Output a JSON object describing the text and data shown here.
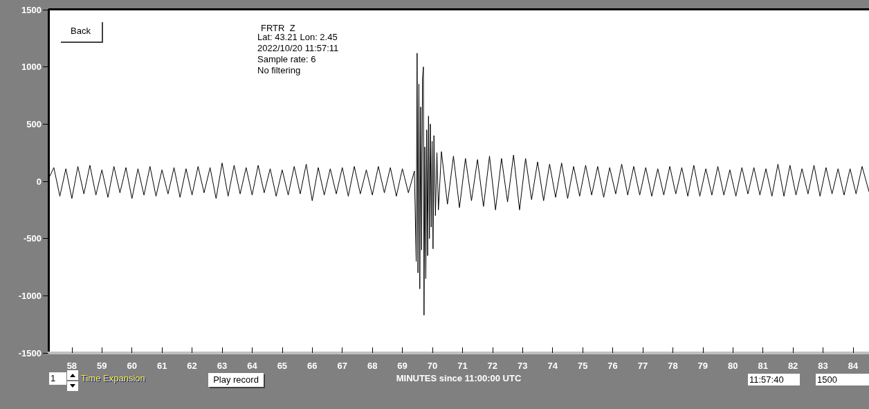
{
  "chart_data": {
    "type": "line",
    "title": "FRTR  Z",
    "xlabel": "MINUTES since 11:00:00 UTC",
    "annotations": [
      "Lat: 43.21 Lon: 2.45",
      "2022/10/20 11:57:11",
      "Sample rate: 6",
      "No filtering",
      "Back",
      "1",
      "Time Expansion",
      "Play record",
      "11:57:40",
      "1500"
    ],
    "x": [
      57.22,
      57.4,
      57.6,
      57.8,
      58.0,
      58.2,
      58.4,
      58.6,
      58.8,
      59.0,
      59.2,
      59.4,
      59.6,
      59.8,
      60.0,
      60.2,
      60.4,
      60.6,
      60.8,
      61.0,
      61.2,
      61.4,
      61.6,
      61.8,
      62.0,
      62.2,
      62.4,
      62.6,
      62.8,
      63.0,
      63.2,
      63.4,
      63.6,
      63.8,
      64.0,
      64.2,
      64.4,
      64.6,
      64.8,
      65.0,
      65.2,
      65.4,
      65.6,
      65.8,
      66.0,
      66.2,
      66.4,
      66.6,
      66.8,
      67.0,
      67.2,
      67.4,
      67.6,
      67.8,
      68.0,
      68.2,
      68.4,
      68.6,
      68.8,
      69.0,
      69.2,
      69.4,
      69.46,
      69.49,
      69.52,
      69.55,
      69.58,
      69.61,
      69.64,
      69.67,
      69.7,
      69.72,
      69.75,
      69.78,
      69.81,
      69.84,
      69.87,
      69.9,
      69.93,
      69.96,
      69.99,
      70.02,
      70.05,
      70.1,
      70.15,
      70.2,
      70.3,
      70.5,
      70.7,
      70.9,
      71.1,
      71.3,
      71.5,
      71.7,
      71.9,
      72.1,
      72.3,
      72.5,
      72.7,
      72.9,
      73.1,
      73.3,
      73.5,
      73.7,
      73.9,
      74.1,
      74.3,
      74.5,
      74.7,
      74.9,
      75.1,
      75.3,
      75.5,
      75.7,
      75.9,
      76.1,
      76.3,
      76.5,
      76.7,
      76.9,
      77.1,
      77.3,
      77.5,
      77.7,
      77.9,
      78.1,
      78.3,
      78.5,
      78.7,
      78.9,
      79.1,
      79.3,
      79.5,
      79.7,
      79.9,
      80.1,
      80.3,
      80.5,
      80.7,
      80.9,
      81.1,
      81.3,
      81.5,
      81.7,
      81.9,
      82.1,
      82.3,
      82.5,
      82.7,
      82.9,
      83.1,
      83.3,
      83.5,
      83.7,
      83.9,
      84.1,
      84.3,
      84.53
    ],
    "series": [
      {
        "color": "#000000",
        "values": [
          20,
          120,
          -130,
          110,
          -150,
          130,
          -110,
          140,
          -120,
          100,
          -140,
          130,
          -100,
          120,
          -150,
          110,
          -120,
          130,
          -130,
          100,
          -110,
          120,
          -140,
          110,
          -120,
          130,
          -100,
          120,
          -150,
          160,
          -130,
          140,
          -110,
          120,
          -120,
          140,
          -100,
          110,
          -130,
          100,
          -120,
          130,
          -110,
          150,
          -170,
          120,
          -120,
          110,
          -110,
          120,
          -130,
          130,
          -110,
          100,
          -120,
          130,
          -100,
          120,
          -130,
          110,
          -100,
          90,
          -700,
          1120,
          -800,
          850,
          -940,
          650,
          -600,
          900,
          1000,
          -1170,
          300,
          -850,
          450,
          -650,
          570,
          -500,
          500,
          -400,
          350,
          -590,
          400,
          -300,
          250,
          -250,
          260,
          -200,
          220,
          -230,
          200,
          -170,
          190,
          -220,
          220,
          -250,
          200,
          -180,
          230,
          -250,
          200,
          -160,
          170,
          -170,
          150,
          -140,
          160,
          -150,
          130,
          -130,
          140,
          -120,
          130,
          -140,
          120,
          -110,
          150,
          -120,
          130,
          -120,
          120,
          -130,
          110,
          -120,
          130,
          -110,
          120,
          -130,
          140,
          -130,
          110,
          -120,
          130,
          -120,
          100,
          -130,
          120,
          -110,
          120,
          -120,
          110,
          -130,
          150,
          -130,
          140,
          -120,
          110,
          -110,
          140,
          -130,
          120,
          -110,
          110,
          -120,
          110,
          -110,
          130,
          -90
        ]
      }
    ],
    "xlim": [
      57.22,
      84.53
    ],
    "xticks": [
      58,
      59,
      60,
      61,
      62,
      63,
      64,
      65,
      66,
      67,
      68,
      69,
      70,
      71,
      72,
      73,
      74,
      75,
      76,
      77,
      78,
      79,
      80,
      81,
      82,
      83,
      84
    ],
    "ylim": [
      -1500,
      1500
    ],
    "yticks": [
      -1500,
      -1000,
      -500,
      0,
      500,
      1000,
      1500
    ],
    "grid": false,
    "marker": "none",
    "line_style": "solid"
  }
}
